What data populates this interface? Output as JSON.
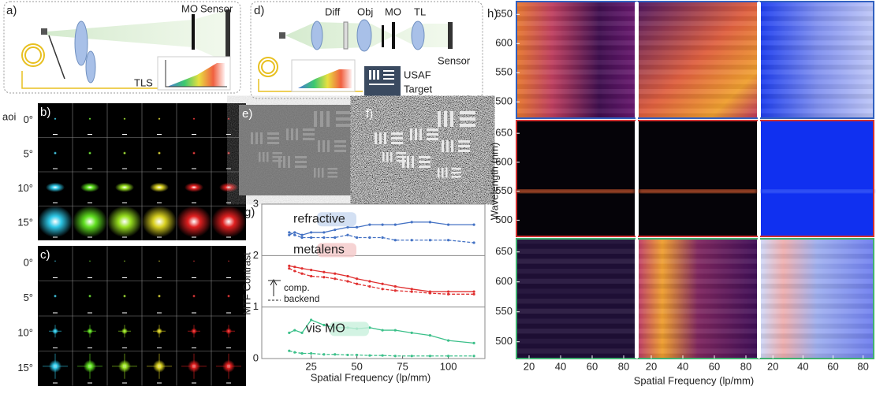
{
  "panel_a": {
    "label": "a)",
    "mo": "MO",
    "sensor": "Sensor",
    "source": "TLS"
  },
  "panel_d": {
    "label": "d)",
    "diffuser": "Diff",
    "objective": "Obj",
    "mo": "MO",
    "tube_lens": "TL",
    "sensor": "Sensor",
    "target": [
      "USAF",
      "Target"
    ]
  },
  "panel_b": {
    "label": "b)",
    "row_header": "aoi",
    "rows": [
      "0°",
      "5°",
      "10°",
      "15°"
    ]
  },
  "panel_c": {
    "label": "c)",
    "rows": [
      "0°",
      "5°",
      "10°",
      "15°"
    ]
  },
  "panel_e": {
    "label": "e)"
  },
  "panel_f": {
    "label": "f)"
  },
  "chart_data": [
    {
      "type": "line",
      "label": "g)",
      "x_label": "Spatial Frequency (lp/mm)",
      "y_label": "MTF Contrast",
      "x": [
        13,
        16,
        20,
        25,
        32,
        38,
        45,
        50,
        57,
        64,
        71,
        80,
        90,
        100,
        114
      ],
      "series": [
        {
          "name": "refractive",
          "color": "#4472c4",
          "dashed": false,
          "values": [
            2.4,
            2.45,
            2.4,
            2.45,
            2.45,
            2.5,
            2.55,
            2.55,
            2.6,
            2.6,
            2.6,
            2.65,
            2.65,
            2.6,
            2.6
          ]
        },
        {
          "color": "#4472c4",
          "dashed": true,
          "values": [
            2.45,
            2.4,
            2.35,
            2.35,
            2.35,
            2.35,
            2.4,
            2.35,
            2.35,
            2.35,
            2.3,
            2.3,
            2.3,
            2.3,
            2.25
          ]
        },
        {
          "name": "metalens",
          "color": "#e03030",
          "dashed": false,
          "values": [
            1.8,
            1.78,
            1.75,
            1.72,
            1.68,
            1.65,
            1.6,
            1.55,
            1.5,
            1.45,
            1.4,
            1.35,
            1.3,
            1.3,
            1.3
          ]
        },
        {
          "color": "#e03030",
          "dashed": true,
          "values": [
            1.75,
            1.7,
            1.65,
            1.6,
            1.58,
            1.55,
            1.5,
            1.45,
            1.4,
            1.35,
            1.32,
            1.3,
            1.27,
            1.25,
            1.25
          ]
        },
        {
          "name": "vis MO",
          "color": "#3cc08a",
          "dashed": false,
          "values": [
            0.5,
            0.55,
            0.5,
            0.75,
            0.65,
            0.6,
            0.6,
            0.58,
            0.6,
            0.55,
            0.55,
            0.5,
            0.45,
            0.35,
            0.3
          ]
        },
        {
          "color": "#3cc08a",
          "dashed": true,
          "values": [
            0.15,
            0.12,
            0.1,
            0.1,
            0.08,
            0.08,
            0.07,
            0.07,
            0.06,
            0.06,
            0.05,
            0.05,
            0.05,
            0.05,
            0.05
          ]
        }
      ],
      "backend_note": [
        "comp.",
        "backend"
      ],
      "xlim": [
        -2,
        120
      ],
      "ylim": [
        0,
        3
      ],
      "xticks": [
        25,
        50,
        75,
        100
      ],
      "yticks": [
        0,
        1,
        2,
        3
      ],
      "grid": true
    },
    {
      "type": "heatmap",
      "label": "h)",
      "x_label": "Spatial Frequency (lp/mm)",
      "y_label": "Wavelength (nm)",
      "xlim": [
        12,
        87
      ],
      "ylim": [
        472,
        672
      ],
      "xticks": [
        20,
        40,
        60,
        80
      ],
      "yticks": [
        500,
        550,
        600,
        650
      ],
      "row_colors": [
        "#3060c0",
        "#d03030",
        "#40b070"
      ]
    }
  ]
}
